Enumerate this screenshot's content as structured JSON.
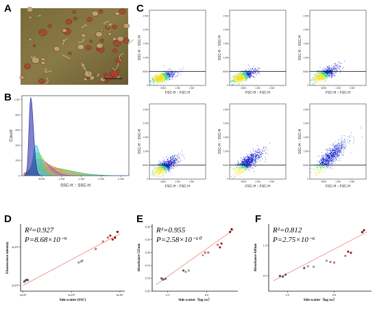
{
  "panels": {
    "A": "A",
    "B": "B",
    "C": "C",
    "D": "D",
    "E": "E",
    "F": "F"
  },
  "colors": {
    "ssc_hist": [
      "#1a1aa8",
      "#2dd0d8",
      "#9bd44a",
      "#c044c0",
      "#e8a040",
      "#38a838"
    ],
    "scatter_low": "#1020c8",
    "scatter_mid": "#20d8a0",
    "scatter_high": "#f0e020",
    "regression": "#f08080"
  },
  "chart_data": [
    {
      "id": "A",
      "type": "other",
      "description_free": true
    },
    {
      "id": "B",
      "type": "area",
      "xlabel": "SSC-H :: SSC-H",
      "ylabel": "Count",
      "xticks": [
        "500K",
        "1.0M",
        "1.5M",
        "2.0M",
        "2.5M"
      ],
      "yticks": [
        "0",
        "200",
        "400",
        "600",
        "800",
        "1.0K"
      ],
      "xlim": [
        0,
        2.7
      ],
      "ylim": [
        0,
        1050
      ],
      "series": [
        {
          "peak_x": 0.22,
          "peak_y": 1030,
          "width": 0.07
        },
        {
          "peak_x": 0.35,
          "peak_y": 400,
          "width": 0.12
        },
        {
          "peak_x": 0.38,
          "peak_y": 300,
          "width": 0.2
        },
        {
          "peak_x": 0.42,
          "peak_y": 220,
          "width": 0.28
        },
        {
          "peak_x": 0.5,
          "peak_y": 160,
          "width": 0.4
        },
        {
          "peak_x": 0.6,
          "peak_y": 110,
          "width": 0.6
        }
      ]
    },
    {
      "id": "C",
      "type": "scatter",
      "xlabel": "FSC-H :: FSC-H",
      "ylabel": "SSC-H :: SSC-H",
      "xticks": [
        "500K",
        "1.0M",
        "1.5M"
      ],
      "yticks": [
        "0",
        "500K",
        "1.0M",
        "1.5M",
        "2.0M",
        "2.5M"
      ],
      "xlim": [
        0,
        2.0
      ],
      "ylim": [
        0,
        2.7
      ],
      "gate_y": 0.5,
      "subplots": [
        {
          "spread": 0.08
        },
        {
          "spread": 0.15
        },
        {
          "spread": 0.25
        },
        {
          "spread": 0.35
        },
        {
          "spread": 0.5
        },
        {
          "spread": 0.7
        }
      ]
    },
    {
      "id": "D",
      "type": "scatter",
      "annotations": [
        "R²=0.927",
        "P=8.68×10⁻⁹"
      ],
      "xlabel": "Side scatter (SSC)",
      "ylabel": "Fluorescence intensity",
      "xticks": [
        "2x10⁵",
        "4x10⁵",
        "6x10⁵"
      ],
      "yticks": [
        "2x10⁵",
        "4x10⁵"
      ],
      "xlim": [
        1.9,
        6.2
      ],
      "ylim": [
        1.7,
        5.2
      ],
      "x": [
        2.05,
        2.1,
        2.15,
        2.2,
        4.3,
        4.4,
        4.45,
        5.0,
        5.3,
        5.5,
        5.6,
        5.7,
        5.8,
        5.9
      ],
      "y": [
        2.2,
        2.25,
        2.3,
        2.28,
        3.2,
        3.25,
        3.3,
        3.9,
        4.3,
        4.5,
        4.6,
        4.4,
        4.5,
        4.8
      ],
      "regression": {
        "x": [
          2.0,
          6.0
        ],
        "y": [
          2.0,
          4.7
        ]
      }
    },
    {
      "id": "E",
      "type": "scatter",
      "annotations": [
        "R²=0.955",
        "P=2.58×10⁻¹⁰"
      ],
      "xlabel": "Side scatter（log ssc）",
      "ylabel": "Absorbance 525nm",
      "xticks": [
        "5.5",
        "6.0"
      ],
      "yticks": [
        "0.05",
        "0.10",
        "0.15",
        "0.20",
        "0.25",
        "0.30"
      ],
      "xlim": [
        5.3,
        6.4
      ],
      "ylim": [
        0.05,
        0.31
      ],
      "x": [
        5.42,
        5.44,
        5.47,
        5.7,
        5.73,
        5.77,
        5.95,
        5.98,
        6.02,
        6.14,
        6.17,
        6.19,
        6.3,
        6.32
      ],
      "y": [
        0.1,
        0.095,
        0.098,
        0.13,
        0.125,
        0.13,
        0.19,
        0.2,
        0.2,
        0.23,
        0.22,
        0.235,
        0.28,
        0.29
      ],
      "regression": {
        "x": [
          5.35,
          6.35
        ],
        "y": [
          0.075,
          0.29
        ]
      }
    },
    {
      "id": "F",
      "type": "scatter",
      "annotations": [
        "R²=0.812",
        "P=2.75×10⁻⁶"
      ],
      "xlabel": "Side scatter（log ssc）",
      "ylabel": "Absorbance 420nm",
      "xticks": [
        "5.5",
        "6.0"
      ],
      "yticks": [
        "0.5",
        "1.0"
      ],
      "xlim": [
        5.3,
        6.4
      ],
      "ylim": [
        0.25,
        1.35
      ],
      "x": [
        5.42,
        5.45,
        5.48,
        5.68,
        5.72,
        5.78,
        5.92,
        5.96,
        6.0,
        6.12,
        6.15,
        6.18,
        6.3,
        6.32
      ],
      "y": [
        0.5,
        0.49,
        0.52,
        0.63,
        0.66,
        0.65,
        0.75,
        0.73,
        0.72,
        0.83,
        0.9,
        0.88,
        1.22,
        1.25
      ],
      "regression": {
        "x": [
          5.35,
          6.35
        ],
        "y": [
          0.42,
          1.22
        ]
      }
    }
  ]
}
